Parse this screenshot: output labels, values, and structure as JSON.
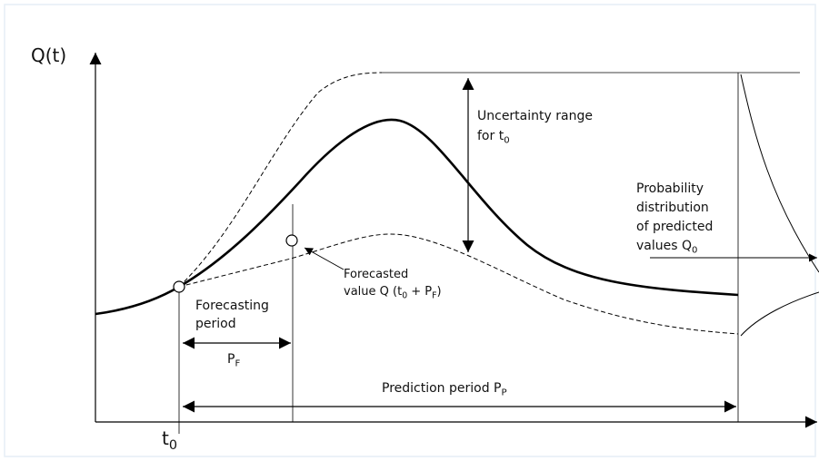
{
  "y_axis_label": [
    {
      "text": "Q(t)"
    }
  ],
  "x_axis_label": [
    {
      "text": "t"
    },
    {
      "sub": "0"
    }
  ],
  "uncertainty_label": [
    [
      {
        "text": "Uncertainty range"
      }
    ],
    [
      {
        "text": "for t"
      },
      {
        "sub": "0"
      }
    ]
  ],
  "distribution_label": [
    [
      {
        "text": "Probability"
      }
    ],
    [
      {
        "text": "distribution"
      }
    ],
    [
      {
        "text": "of predicted"
      }
    ],
    [
      {
        "text": "values Q"
      },
      {
        "sub": "0"
      }
    ]
  ],
  "forecasted_label": [
    [
      {
        "text": "Forecasted"
      }
    ],
    [
      {
        "text": "value Q (t"
      },
      {
        "sub": "0"
      },
      {
        "text": " + P"
      },
      {
        "sub": "F"
      },
      {
        "text": ")"
      }
    ]
  ],
  "forecasting_period_label": [
    [
      {
        "text": "Forecasting"
      }
    ],
    [
      {
        "text": "period"
      }
    ]
  ],
  "pf_label": [
    {
      "text": "P"
    },
    {
      "sub": "F"
    }
  ],
  "prediction_period_label": [
    {
      "text": "Prediction period P"
    },
    {
      "sub": "P"
    }
  ]
}
